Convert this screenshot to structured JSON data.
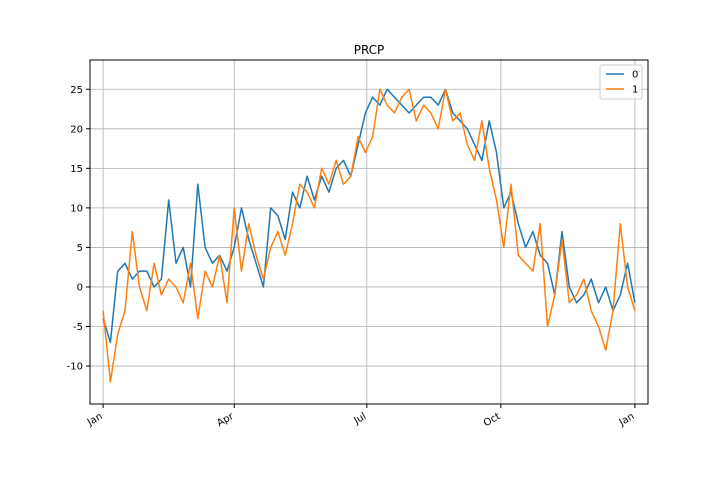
{
  "chart_data": {
    "type": "line",
    "title": "PRCP",
    "xlabel": "",
    "ylabel": "",
    "x_ticks": [
      {
        "label": "Jan",
        "day": 0
      },
      {
        "label": "Apr",
        "day": 90
      },
      {
        "label": "Jul",
        "day": 181
      },
      {
        "label": "Oct",
        "day": 273
      },
      {
        "label": "Jan",
        "day": 365
      }
    ],
    "xlim": [
      -9,
      374
    ],
    "y_ticks": [
      -10,
      -5,
      0,
      5,
      10,
      15,
      20,
      25
    ],
    "ylim": [
      -14.8,
      28.7
    ],
    "grid": true,
    "legend_position": "top-right",
    "series": [
      {
        "name": "0",
        "color": "#1f77b4",
        "x": [
          0,
          5,
          10,
          15,
          20,
          25,
          30,
          35,
          40,
          45,
          50,
          55,
          60,
          65,
          70,
          75,
          80,
          85,
          90,
          95,
          100,
          105,
          110,
          115,
          120,
          125,
          130,
          135,
          140,
          145,
          150,
          155,
          160,
          165,
          170,
          175,
          180,
          185,
          190,
          195,
          200,
          205,
          210,
          215,
          220,
          225,
          230,
          235,
          240,
          245,
          250,
          255,
          260,
          265,
          270,
          275,
          280,
          285,
          290,
          295,
          300,
          305,
          310,
          315,
          320,
          325,
          330,
          335,
          340,
          345,
          350,
          355,
          360,
          365
        ],
        "values": [
          -4,
          -7,
          2,
          3,
          1,
          2,
          2,
          0,
          1,
          11,
          3,
          5,
          0,
          13,
          5,
          3,
          4,
          2,
          5,
          10,
          6,
          3,
          0,
          10,
          9,
          6,
          12,
          10,
          14,
          11,
          14,
          12,
          15,
          16,
          14,
          18,
          22,
          24,
          23,
          25,
          24,
          23,
          22,
          23,
          24,
          24,
          23,
          25,
          22,
          21,
          20,
          18,
          16,
          21,
          17,
          10,
          12,
          8,
          5,
          7,
          4,
          3,
          -1,
          7,
          0,
          -2,
          -1,
          1,
          -2,
          0,
          -3,
          -1,
          3,
          -2
        ]
      },
      {
        "name": "1",
        "color": "#ff7f0e",
        "x": [
          0,
          5,
          10,
          15,
          20,
          25,
          30,
          35,
          40,
          45,
          50,
          55,
          60,
          65,
          70,
          75,
          80,
          85,
          90,
          95,
          100,
          105,
          110,
          115,
          120,
          125,
          130,
          135,
          140,
          145,
          150,
          155,
          160,
          165,
          170,
          175,
          180,
          185,
          190,
          195,
          200,
          205,
          210,
          215,
          220,
          225,
          230,
          235,
          240,
          245,
          250,
          255,
          260,
          265,
          270,
          275,
          280,
          285,
          290,
          295,
          300,
          305,
          310,
          315,
          320,
          325,
          330,
          335,
          340,
          345,
          350,
          355,
          360,
          365
        ],
        "values": [
          -3,
          -12,
          -6,
          -3,
          7,
          0,
          -3,
          3,
          -1,
          1,
          0,
          -2,
          3,
          -4,
          2,
          0,
          4,
          -2,
          10,
          2,
          8,
          4,
          1,
          5,
          7,
          4,
          8,
          13,
          12,
          10,
          15,
          13,
          16,
          13,
          14,
          19,
          17,
          19,
          25,
          23,
          22,
          24,
          25,
          21,
          23,
          22,
          20,
          25,
          21,
          22,
          18,
          16,
          21,
          15,
          11,
          5,
          13,
          4,
          3,
          2,
          8,
          -5,
          -1,
          6,
          -2,
          -1,
          1,
          -3,
          -5,
          -8,
          -3,
          8,
          0,
          -3
        ]
      }
    ]
  }
}
